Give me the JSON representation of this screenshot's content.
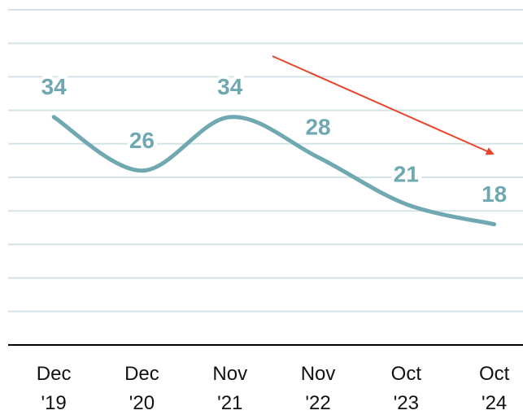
{
  "chart_data": {
    "type": "line",
    "categories": [
      "Dec '19",
      "Dec '20",
      "Nov '21",
      "Nov '22",
      "Oct '23",
      "Oct '24"
    ],
    "series": [
      {
        "name": null,
        "color": "#6fa8b1",
        "values": [
          34,
          26,
          34,
          28,
          21,
          18
        ]
      }
    ],
    "ylim": [
      0,
      50
    ],
    "yticks": [
      0,
      5,
      10,
      15,
      20,
      25,
      30,
      35,
      40,
      45,
      50
    ],
    "grid": true
  }
}
